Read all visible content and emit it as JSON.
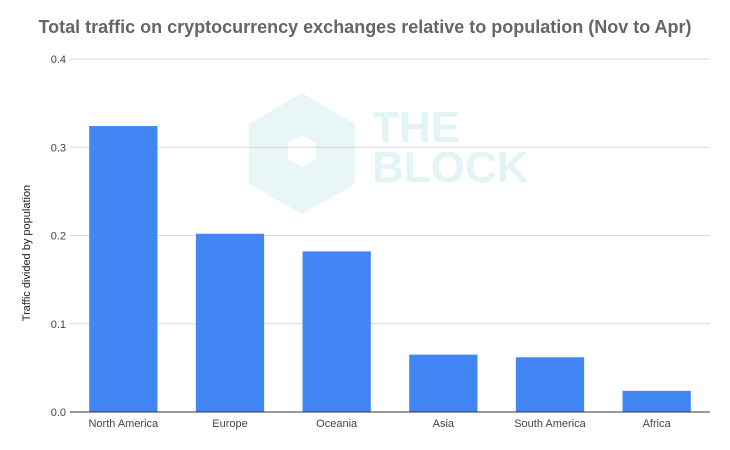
{
  "chart_data": {
    "type": "bar",
    "title": "Total traffic on cryptocurrency exchanges relative to population (Nov to Apr)",
    "xlabel": "",
    "ylabel": "Traffic divided by population",
    "categories": [
      "North America",
      "Europe",
      "Oceania",
      "Asia",
      "South America",
      "Africa"
    ],
    "values": [
      0.324,
      0.202,
      0.182,
      0.065,
      0.062,
      0.024
    ],
    "ylim": [
      0,
      0.4
    ],
    "yticks": [
      "0.0",
      "0.1",
      "0.2",
      "0.3",
      "0.4"
    ],
    "grid": true,
    "bar_color": "#4285f4"
  },
  "watermark": {
    "lines": [
      "THE",
      "BLOCK"
    ],
    "color": "#e3f4f7"
  }
}
